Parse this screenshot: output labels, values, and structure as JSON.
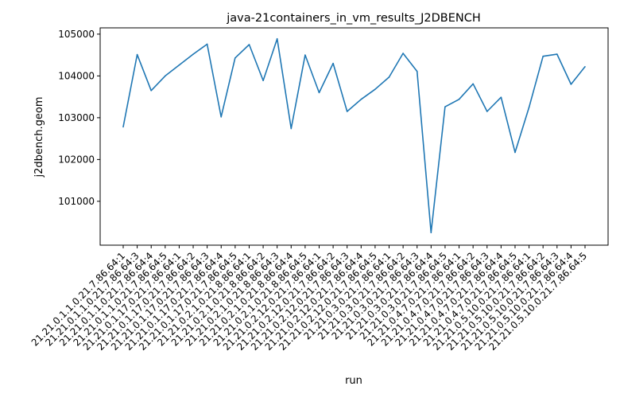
{
  "chart_data": {
    "type": "line",
    "title": "java-21containers_in_vm_results_J2DBENCH",
    "xlabel": "run",
    "ylabel": "j2dbench.geom",
    "yticks": [
      101000,
      102000,
      103000,
      104000,
      105000
    ],
    "ylim": [
      99950,
      105150
    ],
    "grid": false,
    "line_color": "#1f77b4",
    "categories": [
      "21.21.0.1.1.0.21.7.86.64:1",
      "21.21.0.1.1.0.21.7.86.64:3",
      "21.21.0.1.1.0.21.7.86.64:4",
      "21.21.0.1.1.0.21.7.86.64:5",
      "21.21.0.1.17.0.21.7.86.64:1",
      "21.21.0.1.17.0.21.7.86.64:2",
      "21.21.0.1.17.0.21.7.86.64:3",
      "21.21.0.1.17.0.21.7.86.64:4",
      "21.21.0.1.17.0.21.7.86.64:5",
      "21.21.0.2.1.0.21.8.86.64:1",
      "21.21.0.2.1.0.21.8.86.64:2",
      "21.21.0.2.1.0.21.8.86.64:3",
      "21.21.0.2.1.0.21.8.86.64:4",
      "21.21.0.2.1.0.21.8.86.64:5",
      "21.21.0.2.12.0.21.7.86.64:1",
      "21.21.0.2.12.0.21.7.86.64:2",
      "21.21.0.2.12.0.21.7.86.64:3",
      "21.21.0.2.12.0.21.7.86.64:4",
      "21.21.0.2.12.0.21.7.86.64:5",
      "21.21.0.3.0.21.7.86.64:1",
      "21.21.0.3.0.21.7.86.64:2",
      "21.21.0.3.0.21.7.86.64:3",
      "21.21.0.3.0.21.7.86.64:4",
      "21.21.0.3.0.21.7.86.64:5",
      "21.21.0.4.7.0.21.7.86.64:1",
      "21.21.0.4.7.0.21.7.86.64:2",
      "21.21.0.4.7.0.21.7.86.64:3",
      "21.21.0.4.7.0.21.7.86.64:4",
      "21.21.0.4.7.0.21.7.86.64:5",
      "21.21.0.5.10.0.21.7.86.64:1",
      "21.21.0.5.10.0.21.7.86.64:2",
      "21.21.0.5.10.0.21.7.86.64:3",
      "21.21.0.5.10.0.21.7.86.64:4",
      "21.21.0.5.10.0.21.7.86.64:5"
    ],
    "values": [
      102780,
      104510,
      103650,
      104000,
      104260,
      104520,
      104760,
      103020,
      104430,
      104750,
      103890,
      104890,
      102740,
      104500,
      103600,
      104300,
      103150,
      103440,
      103680,
      103970,
      104540,
      104110,
      100250,
      103260,
      103440,
      103810,
      103150,
      103490,
      102170,
      103250,
      104470,
      104520,
      103800,
      104220
    ]
  }
}
